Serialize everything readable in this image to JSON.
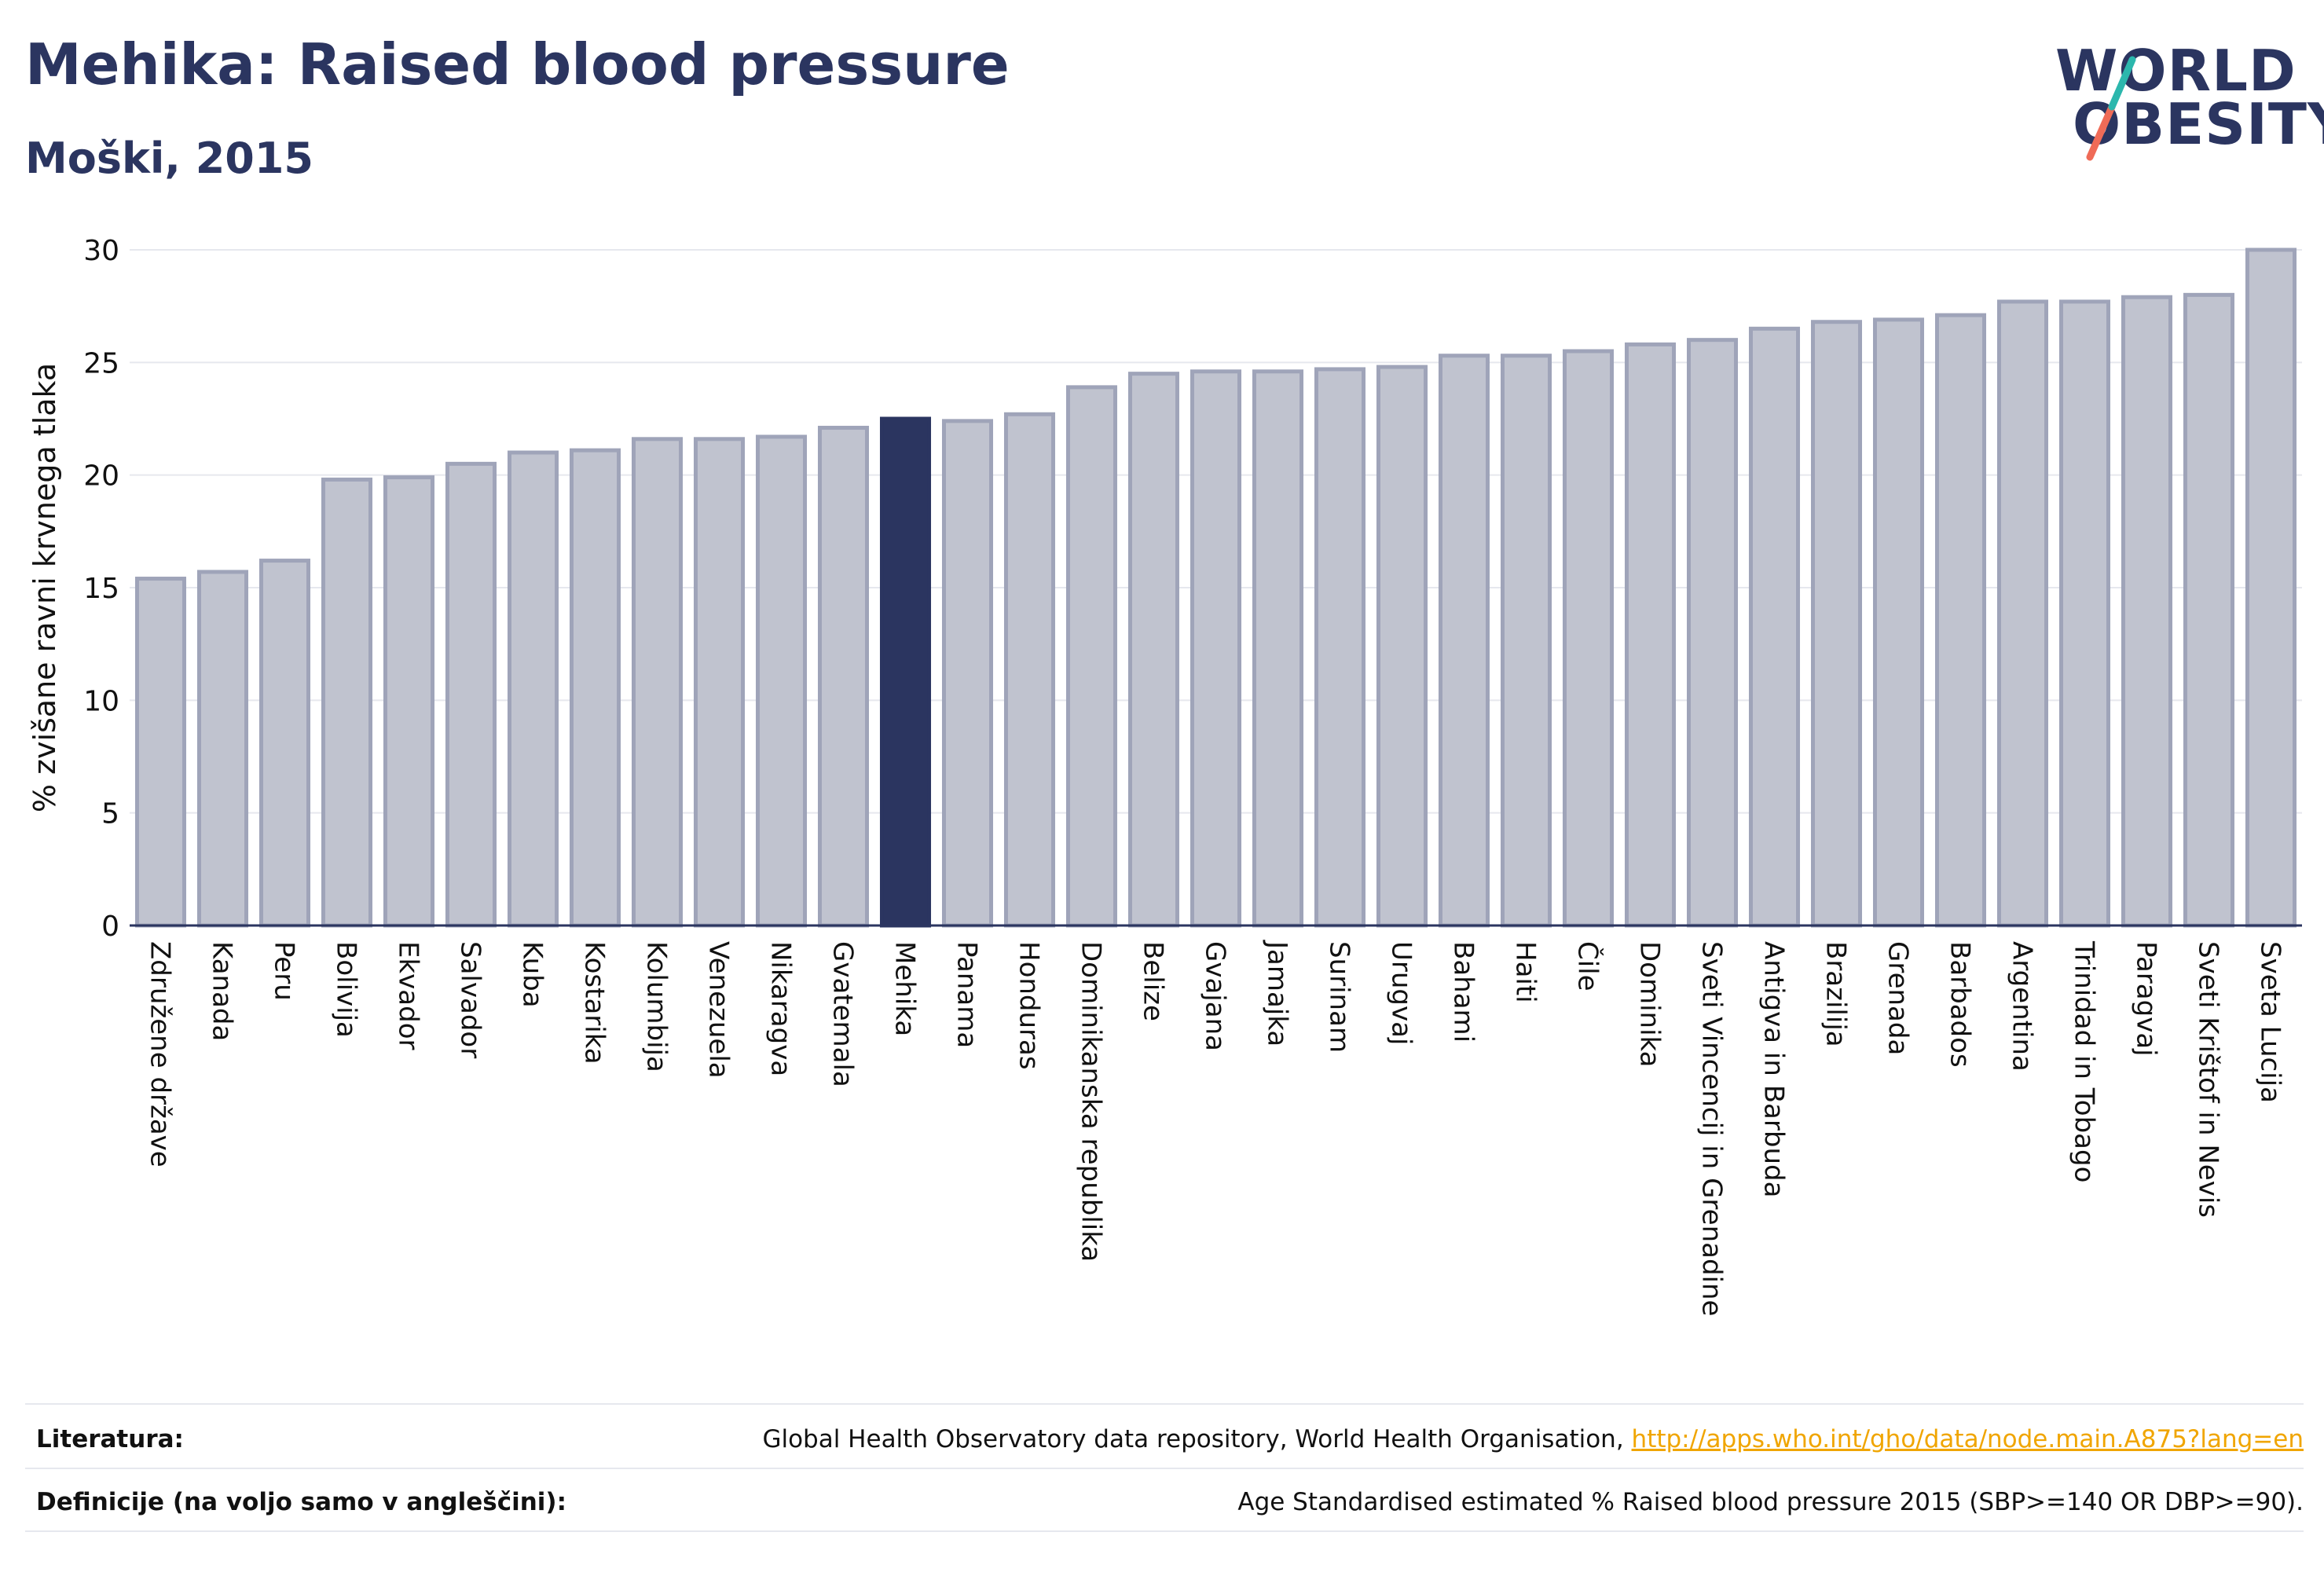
{
  "title": "Mehika: Raised blood pressure",
  "subtitle": "Moški, 2015",
  "logo": {
    "line1": "WORLD",
    "line2": "OBESITY"
  },
  "colors": {
    "accent": "#2b3560",
    "bar_fill": "#c0c3cf",
    "bar_border": "#9fa4b9",
    "logo_slash_teal": "#2cb7ad",
    "logo_slash_red": "#ef6b57",
    "link": "#f0a500"
  },
  "chart_data": {
    "type": "bar",
    "title": "Mehika: Raised blood pressure",
    "subtitle": "Moški, 2015",
    "xlabel": "",
    "ylabel": "% zvišane ravni krvnega tlaka",
    "ylim": [
      0,
      30
    ],
    "yticks": [
      0,
      5,
      10,
      15,
      20,
      25,
      30
    ],
    "grid": true,
    "highlight": "Mehika",
    "categories": [
      "Združene države",
      "Kanada",
      "Peru",
      "Bolivija",
      "Ekvador",
      "Salvador",
      "Kuba",
      "Kostarika",
      "Kolumbija",
      "Venezuela",
      "Nikaragva",
      "Gvatemala",
      "Mehika",
      "Panama",
      "Honduras",
      "Dominikanska republika",
      "Belize",
      "Gvajana",
      "Jamajka",
      "Surinam",
      "Urugvaj",
      "Bahami",
      "Haiti",
      "Čile",
      "Dominika",
      "Sveti Vincencij in Grenadine",
      "Antigva in Barbuda",
      "Brazilija",
      "Grenada",
      "Barbados",
      "Argentina",
      "Trinidad in Tobago",
      "Paragvaj",
      "Sveti Krištof in Nevis",
      "Sveta Lucija"
    ],
    "values": [
      15.4,
      15.7,
      16.2,
      19.8,
      19.9,
      20.5,
      21.0,
      21.1,
      21.6,
      21.6,
      21.7,
      22.1,
      22.5,
      22.4,
      22.7,
      23.9,
      24.5,
      24.6,
      24.6,
      24.7,
      24.8,
      25.3,
      25.3,
      25.5,
      25.8,
      26.0,
      26.5,
      26.8,
      26.9,
      27.1,
      27.7,
      27.7,
      27.9,
      28.0,
      30.0
    ]
  },
  "footer": {
    "literature_label": "Literatura:",
    "literature_text": "Global Health Observatory data repository, World Health Organisation, ",
    "literature_link": "http://apps.who.int/gho/data/node.main.A875?lang=en",
    "definitions_label": "Definicije (na voljo samo v angleščini):",
    "definitions_text": "Age Standardised estimated % Raised blood pressure 2015 (SBP>=140 OR DBP>=90)."
  }
}
